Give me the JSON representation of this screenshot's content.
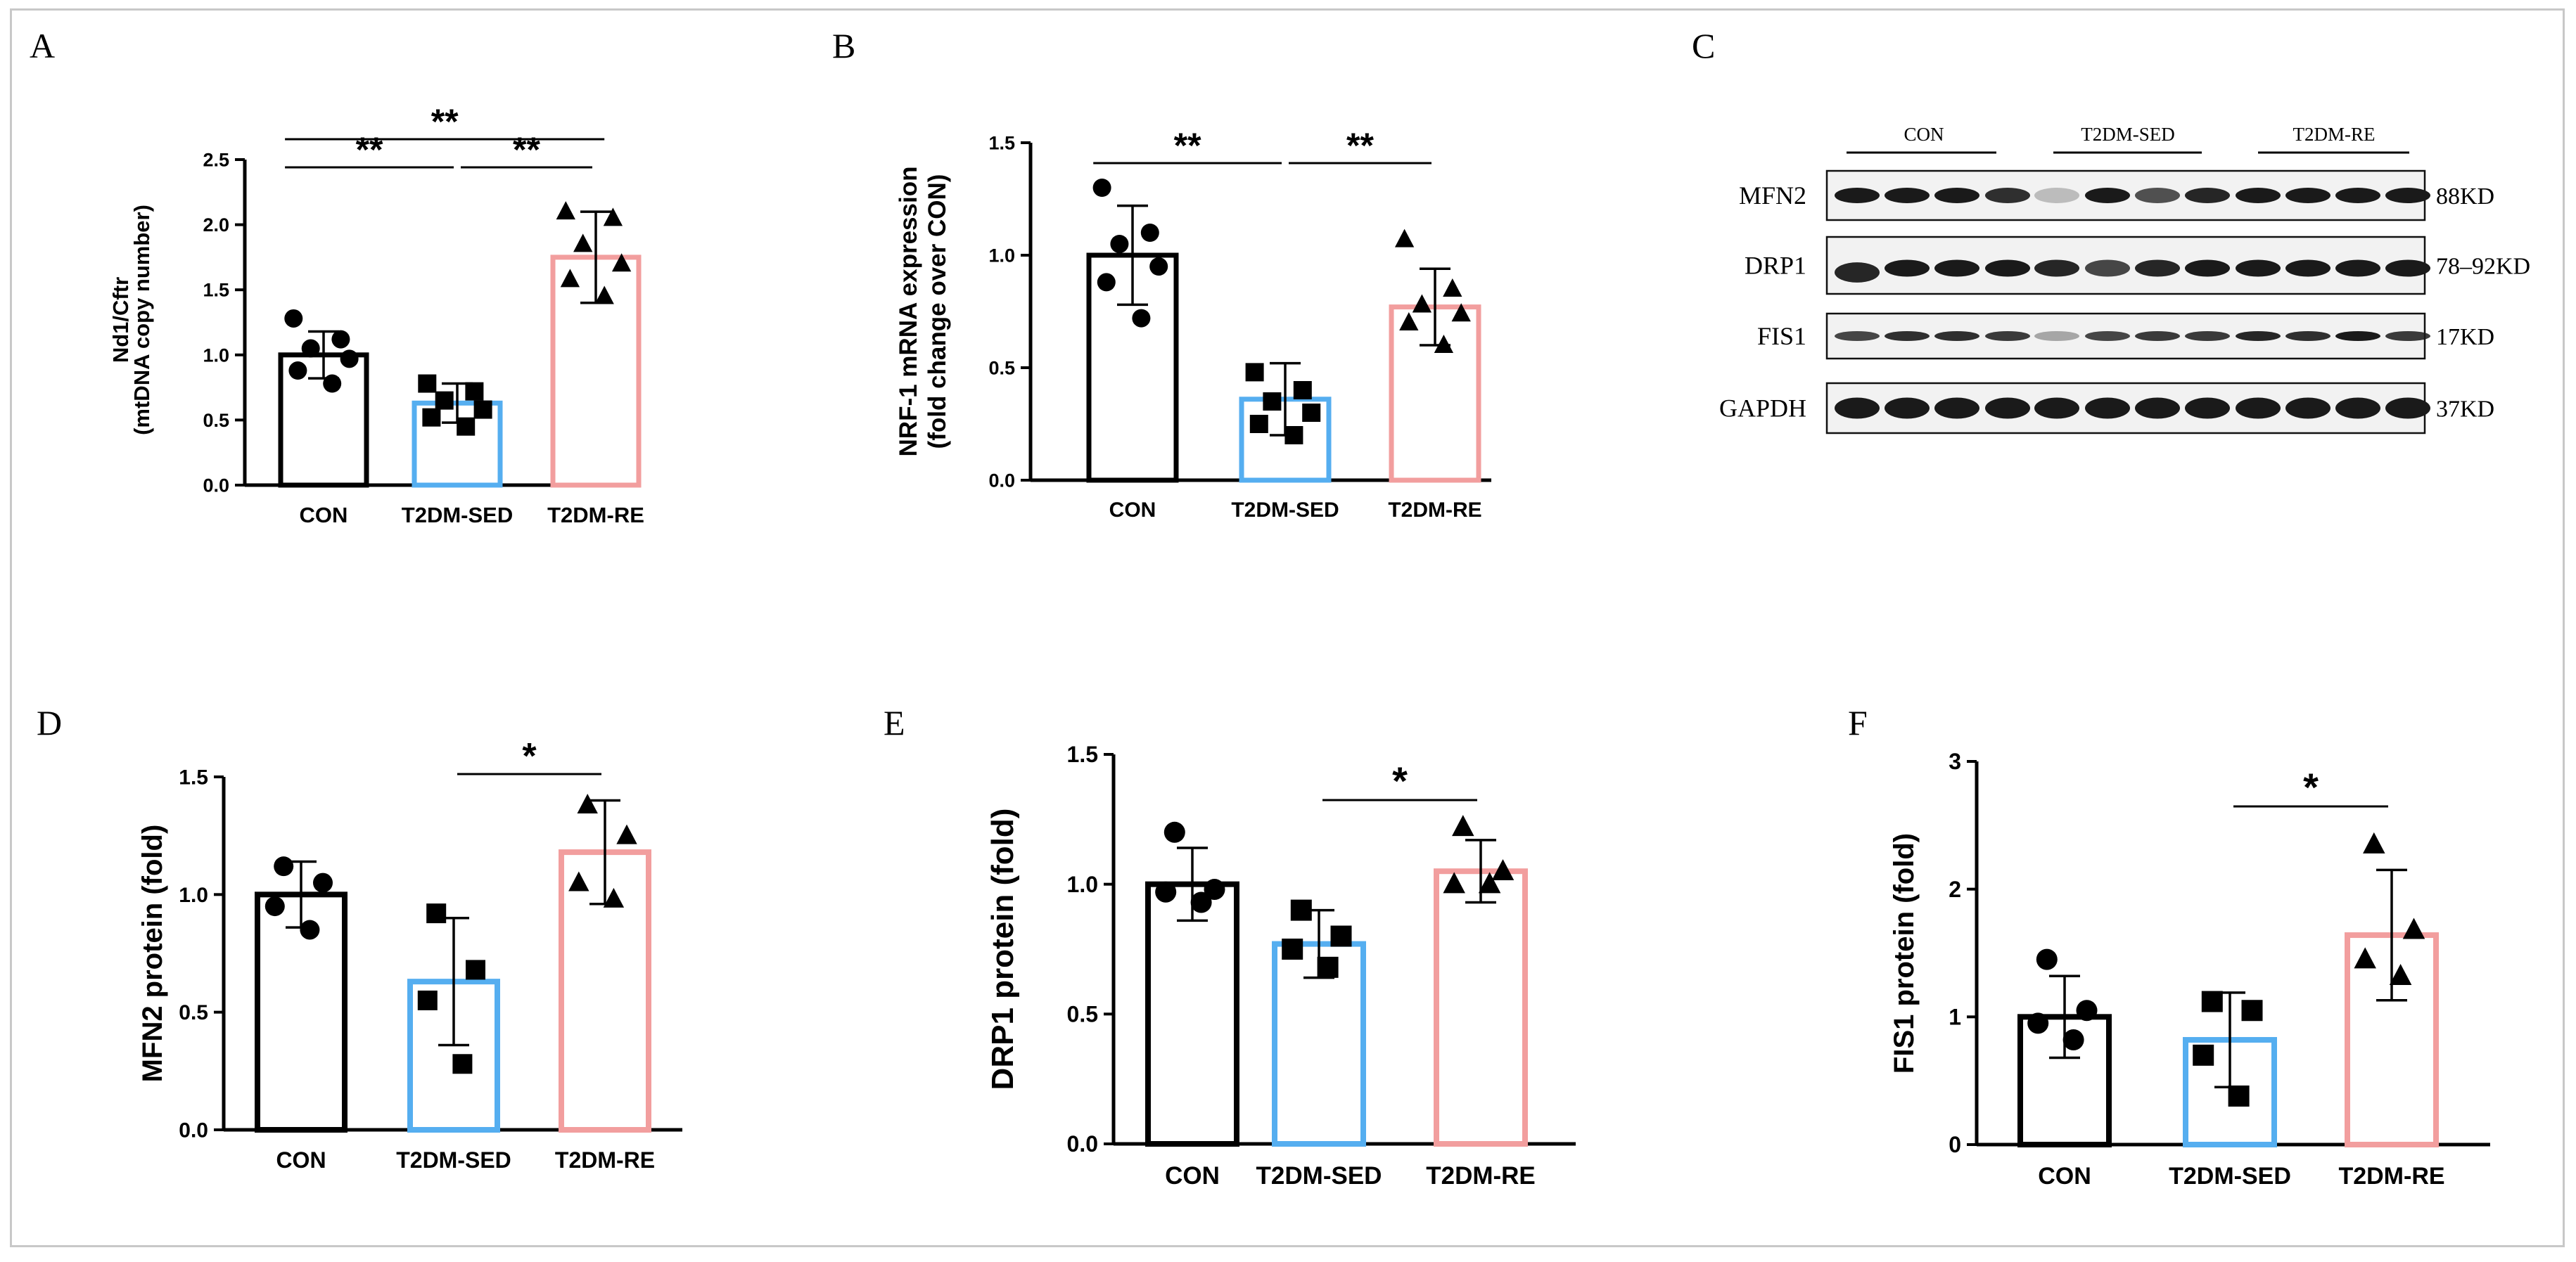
{
  "panels": [
    "A",
    "B",
    "C",
    "D",
    "E",
    "F"
  ],
  "colors": {
    "con": "#000000",
    "sed": "#55aef0",
    "re": "#f29e9e",
    "axis": "#000000",
    "band": "#1a1a1a",
    "frame": "#c8c8c8"
  },
  "western_blot": {
    "groups": [
      "CON",
      "T2DM-SED",
      "T2DM-RE"
    ],
    "rows": [
      {
        "protein": "MFN2",
        "size": "88KD"
      },
      {
        "protein": "DRP1",
        "size": "78–92KD"
      },
      {
        "protein": "FIS1",
        "size": "17KD"
      },
      {
        "protein": "GAPDH",
        "size": "37KD"
      }
    ]
  },
  "chart_data": [
    {
      "panel": "A",
      "type": "bar",
      "categories": [
        "CON",
        "T2DM-SED",
        "T2DM-RE"
      ],
      "values": [
        1.0,
        0.63,
        1.75
      ],
      "errors": [
        0.18,
        0.15,
        0.35
      ],
      "points": [
        [
          1.28,
          1.12,
          1.05,
          0.97,
          0.88,
          0.78
        ],
        [
          0.78,
          0.72,
          0.65,
          0.58,
          0.52,
          0.45
        ],
        [
          2.1,
          2.05,
          1.85,
          1.7,
          1.58,
          1.45
        ]
      ],
      "markers": [
        "circle",
        "square",
        "triangle"
      ],
      "ylabel": "Nd1/Cftr\n(mtDNA copy number)",
      "ylim": [
        0,
        2.5
      ],
      "yticks": [
        "0.0",
        "0.5",
        "1.0",
        "1.5",
        "2.0",
        "2.5"
      ],
      "significance": [
        {
          "from": 0,
          "to": 1,
          "label": "**"
        },
        {
          "from": 1,
          "to": 2,
          "label": "**"
        },
        {
          "from": 0,
          "to": 2,
          "label": "**"
        }
      ]
    },
    {
      "panel": "B",
      "type": "bar",
      "categories": [
        "CON",
        "T2DM-SED",
        "T2DM-RE"
      ],
      "values": [
        1.0,
        0.36,
        0.77
      ],
      "errors": [
        0.22,
        0.16,
        0.17
      ],
      "points": [
        [
          1.3,
          1.1,
          1.05,
          0.95,
          0.88,
          0.72
        ],
        [
          0.48,
          0.4,
          0.35,
          0.3,
          0.25,
          0.2
        ],
        [
          1.07,
          0.85,
          0.78,
          0.74,
          0.7,
          0.6
        ]
      ],
      "markers": [
        "circle",
        "square",
        "triangle"
      ],
      "ylabel": "NRF-1 mRNA expression\n(fold change over CON)",
      "ylim": [
        0,
        1.5
      ],
      "yticks": [
        "0.0",
        "0.5",
        "1.0",
        "1.5"
      ],
      "significance": [
        {
          "from": 0,
          "to": 1,
          "label": "**"
        },
        {
          "from": 1,
          "to": 2,
          "label": "**"
        }
      ]
    },
    {
      "panel": "D",
      "type": "bar",
      "categories": [
        "CON",
        "T2DM-SED",
        "T2DM-RE"
      ],
      "values": [
        1.0,
        0.63,
        1.18
      ],
      "errors": [
        0.14,
        0.27,
        0.22
      ],
      "points": [
        [
          1.12,
          1.05,
          0.95,
          0.85
        ],
        [
          0.92,
          0.68,
          0.55,
          0.28
        ],
        [
          1.38,
          1.25,
          1.05,
          0.98
        ]
      ],
      "markers": [
        "circle",
        "square",
        "triangle"
      ],
      "ylabel": "MFN2 protein (fold)",
      "ylim": [
        0,
        1.5
      ],
      "yticks": [
        "0.0",
        "0.5",
        "1.0",
        "1.5"
      ],
      "significance": [
        {
          "from": 1,
          "to": 2,
          "label": "*"
        }
      ]
    },
    {
      "panel": "E",
      "type": "bar",
      "categories": [
        "CON",
        "T2DM-SED",
        "T2DM-RE"
      ],
      "values": [
        1.0,
        0.77,
        1.05
      ],
      "errors": [
        0.14,
        0.13,
        0.12
      ],
      "points": [
        [
          1.2,
          0.98,
          0.97,
          0.93
        ],
        [
          0.9,
          0.8,
          0.75,
          0.68
        ],
        [
          1.22,
          1.05,
          1.0,
          1.0
        ]
      ],
      "markers": [
        "circle",
        "square",
        "triangle"
      ],
      "ylabel": "DRP1 protein (fold)",
      "ylim": [
        0,
        1.5
      ],
      "yticks": [
        "0.0",
        "0.5",
        "1.0",
        "1.5"
      ],
      "significance": [
        {
          "from": 1,
          "to": 2,
          "label": "*"
        }
      ]
    },
    {
      "panel": "F",
      "type": "bar",
      "categories": [
        "CON",
        "T2DM-SED",
        "T2DM-RE"
      ],
      "values": [
        1.0,
        0.82,
        1.64
      ],
      "errors": [
        0.32,
        0.37,
        0.51
      ],
      "points": [
        [
          1.45,
          1.05,
          0.95,
          0.82
        ],
        [
          1.12,
          1.05,
          0.7,
          0.38
        ],
        [
          2.35,
          1.68,
          1.45,
          1.32
        ]
      ],
      "markers": [
        "circle",
        "square",
        "triangle"
      ],
      "ylabel": "FIS1 protein (fold)",
      "ylim": [
        0,
        3
      ],
      "yticks": [
        "0",
        "1",
        "2",
        "3"
      ],
      "significance": [
        {
          "from": 1,
          "to": 2,
          "label": "*"
        }
      ]
    }
  ]
}
